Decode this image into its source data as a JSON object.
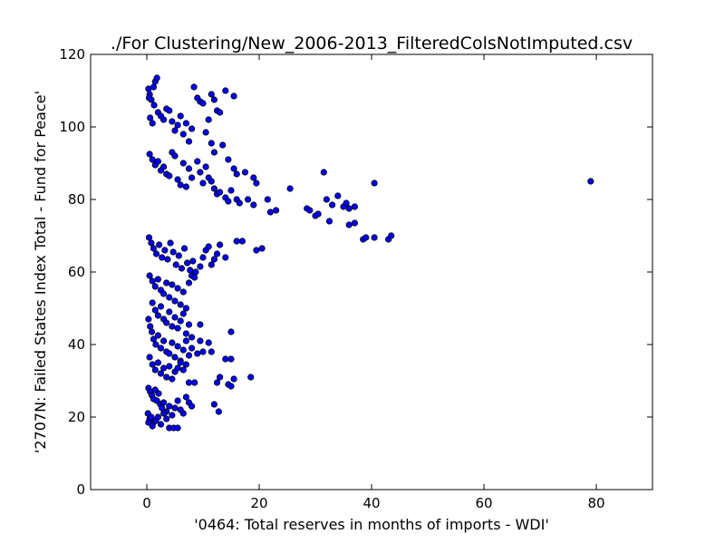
{
  "chart_data": {
    "type": "scatter",
    "title": "./For Clustering/New_2006-2013_FilteredColsNotImputed.csv",
    "xlabel": "'0464: Total reserves in months of imports - WDI'",
    "ylabel": "'2707N: Failed States Index Total - Fund for Peace'",
    "xlim": [
      -10,
      90
    ],
    "ylim": [
      0,
      120
    ],
    "xticks": [
      "0",
      "20",
      "40",
      "60",
      "80"
    ],
    "yticks": [
      "0",
      "20",
      "40",
      "60",
      "80",
      "100",
      "120"
    ],
    "grid": false,
    "marker_color": "#0000ff",
    "marker_edge_color": "#000000",
    "series": [
      {
        "points": [
          [
            0.3,
            110.5
          ],
          [
            0.5,
            109.0
          ],
          [
            0.8,
            107.5
          ],
          [
            1.2,
            111.0
          ],
          [
            1.5,
            112.5
          ],
          [
            1.8,
            113.5
          ],
          [
            0.6,
            102.5
          ],
          [
            1.0,
            101.0
          ],
          [
            0.4,
            108.0
          ],
          [
            1.3,
            106.0
          ],
          [
            2.0,
            104.0
          ],
          [
            2.5,
            103.0
          ],
          [
            3.0,
            102.0
          ],
          [
            3.5,
            105.0
          ],
          [
            4.0,
            104.5
          ],
          [
            4.5,
            101.5
          ],
          [
            5.0,
            99.0
          ],
          [
            5.5,
            100.5
          ],
          [
            6.0,
            103.0
          ],
          [
            6.5,
            98.0
          ],
          [
            7.0,
            101.0
          ],
          [
            7.5,
            96.0
          ],
          [
            8.0,
            99.5
          ],
          [
            8.4,
            111.0
          ],
          [
            9.0,
            108.0
          ],
          [
            9.5,
            107.0
          ],
          [
            10.0,
            106.5
          ],
          [
            11.0,
            102.0
          ],
          [
            11.5,
            109.0
          ],
          [
            12.0,
            107.5
          ],
          [
            12.5,
            104.5
          ],
          [
            13.0,
            104.0
          ],
          [
            14.0,
            110.0
          ],
          [
            15.5,
            108.5
          ],
          [
            10.5,
            98.5
          ],
          [
            11.5,
            95.5
          ],
          [
            12.0,
            93.0
          ],
          [
            13.5,
            95.0
          ],
          [
            14.5,
            91.0
          ],
          [
            15.5,
            88.5
          ],
          [
            16.0,
            87.0
          ],
          [
            17.5,
            87.5
          ],
          [
            19.0,
            86.0
          ],
          [
            19.5,
            84.5
          ],
          [
            0.5,
            92.5
          ],
          [
            1.0,
            91.0
          ],
          [
            1.5,
            89.5
          ],
          [
            2.0,
            90.5
          ],
          [
            2.5,
            88.0
          ],
          [
            3.0,
            89.0
          ],
          [
            3.5,
            87.0
          ],
          [
            4.0,
            86.5
          ],
          [
            4.5,
            93.0
          ],
          [
            5.0,
            92.0
          ],
          [
            5.5,
            85.5
          ],
          [
            6.0,
            84.0
          ],
          [
            6.5,
            90.0
          ],
          [
            7.0,
            83.5
          ],
          [
            7.5,
            88.5
          ],
          [
            8.0,
            86.0
          ],
          [
            9.0,
            90.5
          ],
          [
            9.5,
            87.5
          ],
          [
            10.0,
            84.5
          ],
          [
            10.5,
            89.0
          ],
          [
            11.0,
            86.0
          ],
          [
            11.5,
            85.0
          ],
          [
            12.0,
            83.0
          ],
          [
            12.5,
            81.5
          ],
          [
            13.0,
            82.0
          ],
          [
            14.0,
            80.5
          ],
          [
            14.5,
            79.5
          ],
          [
            15.0,
            82.5
          ],
          [
            16.0,
            80.0
          ],
          [
            16.5,
            79.0
          ],
          [
            18.0,
            80.0
          ],
          [
            19.0,
            78.5
          ],
          [
            21.5,
            80.0
          ],
          [
            22.0,
            76.5
          ],
          [
            23.0,
            77.0
          ],
          [
            25.5,
            83.0
          ],
          [
            28.5,
            77.5
          ],
          [
            29.0,
            77.0
          ],
          [
            30.0,
            75.5
          ],
          [
            30.5,
            76.0
          ],
          [
            31.5,
            87.5
          ],
          [
            32.0,
            80.0
          ],
          [
            32.5,
            74.0
          ],
          [
            33.0,
            78.5
          ],
          [
            34.0,
            81.0
          ],
          [
            35.0,
            78.0
          ],
          [
            35.5,
            79.0
          ],
          [
            36.0,
            77.5
          ],
          [
            37.0,
            78.0
          ],
          [
            36.0,
            73.0
          ],
          [
            37.0,
            73.5
          ],
          [
            38.5,
            69.0
          ],
          [
            39.0,
            69.5
          ],
          [
            40.5,
            69.5
          ],
          [
            40.5,
            84.5
          ],
          [
            43.0,
            69.0
          ],
          [
            43.5,
            70.0
          ],
          [
            79.0,
            85.0
          ],
          [
            19.5,
            66.0
          ],
          [
            20.5,
            66.5
          ],
          [
            17.0,
            68.5
          ],
          [
            16.0,
            68.5
          ],
          [
            0.4,
            69.5
          ],
          [
            0.8,
            68.0
          ],
          [
            1.2,
            66.5
          ],
          [
            1.7,
            65.0
          ],
          [
            2.2,
            67.5
          ],
          [
            2.7,
            64.0
          ],
          [
            3.2,
            66.0
          ],
          [
            3.7,
            63.5
          ],
          [
            4.2,
            68.0
          ],
          [
            4.7,
            65.5
          ],
          [
            5.2,
            62.0
          ],
          [
            5.7,
            64.5
          ],
          [
            6.2,
            61.0
          ],
          [
            6.7,
            66.5
          ],
          [
            7.2,
            62.5
          ],
          [
            7.7,
            60.5
          ],
          [
            8.2,
            63.0
          ],
          [
            8.7,
            60.0
          ],
          [
            9.5,
            61.5
          ],
          [
            10.0,
            64.0
          ],
          [
            10.5,
            66.0
          ],
          [
            11.0,
            67.0
          ],
          [
            11.5,
            62.0
          ],
          [
            12.0,
            63.5
          ],
          [
            12.5,
            65.0
          ],
          [
            13.0,
            67.5
          ],
          [
            14.0,
            64.0
          ],
          [
            0.5,
            59.0
          ],
          [
            1.0,
            57.5
          ],
          [
            1.5,
            56.0
          ],
          [
            2.0,
            58.0
          ],
          [
            2.5,
            55.0
          ],
          [
            3.0,
            54.0
          ],
          [
            3.5,
            57.0
          ],
          [
            4.0,
            53.0
          ],
          [
            4.5,
            56.5
          ],
          [
            5.0,
            52.0
          ],
          [
            5.5,
            55.5
          ],
          [
            6.0,
            51.0
          ],
          [
            6.5,
            54.5
          ],
          [
            7.0,
            50.0
          ],
          [
            7.5,
            57.0
          ],
          [
            8.0,
            59.0
          ],
          [
            8.5,
            58.5
          ],
          [
            1.0,
            51.5
          ],
          [
            1.5,
            49.5
          ],
          [
            2.0,
            48.0
          ],
          [
            2.5,
            50.5
          ],
          [
            3.0,
            47.0
          ],
          [
            3.5,
            46.0
          ],
          [
            4.0,
            49.0
          ],
          [
            4.5,
            45.0
          ],
          [
            5.0,
            47.5
          ],
          [
            5.5,
            44.5
          ],
          [
            6.0,
            46.5
          ],
          [
            6.5,
            48.5
          ],
          [
            7.0,
            43.0
          ],
          [
            7.5,
            45.5
          ],
          [
            8.0,
            42.0
          ],
          [
            9.5,
            45.5
          ],
          [
            0.3,
            47.0
          ],
          [
            0.6,
            45.0
          ],
          [
            0.9,
            43.5
          ],
          [
            1.2,
            41.5
          ],
          [
            1.6,
            40.0
          ],
          [
            2.0,
            42.5
          ],
          [
            2.5,
            39.0
          ],
          [
            3.0,
            41.0
          ],
          [
            3.5,
            38.0
          ],
          [
            4.0,
            37.5
          ],
          [
            4.5,
            40.5
          ],
          [
            5.0,
            36.5
          ],
          [
            5.5,
            39.5
          ],
          [
            6.0,
            35.5
          ],
          [
            6.5,
            38.5
          ],
          [
            7.0,
            41.0
          ],
          [
            7.5,
            37.0
          ],
          [
            8.0,
            39.0
          ],
          [
            9.0,
            37.5
          ],
          [
            9.5,
            41.0
          ],
          [
            10.0,
            38.0
          ],
          [
            11.0,
            40.5
          ],
          [
            11.5,
            38.0
          ],
          [
            15.0,
            43.5
          ],
          [
            14.0,
            36.0
          ],
          [
            15.0,
            36.0
          ],
          [
            0.5,
            36.5
          ],
          [
            1.0,
            34.5
          ],
          [
            1.5,
            33.0
          ],
          [
            2.0,
            35.0
          ],
          [
            2.5,
            32.0
          ],
          [
            3.0,
            33.5
          ],
          [
            3.5,
            31.0
          ],
          [
            4.0,
            34.0
          ],
          [
            4.5,
            30.5
          ],
          [
            5.0,
            32.5
          ],
          [
            5.5,
            33.5
          ],
          [
            6.0,
            35.0
          ],
          [
            6.5,
            33.0
          ],
          [
            7.0,
            34.5
          ],
          [
            7.5,
            29.5
          ],
          [
            8.5,
            29.5
          ],
          [
            13.0,
            31.0
          ],
          [
            12.5,
            29.5
          ],
          [
            14.5,
            29.0
          ],
          [
            15.0,
            28.5
          ],
          [
            15.5,
            30.5
          ],
          [
            18.5,
            31.0
          ],
          [
            0.3,
            28.0
          ],
          [
            0.6,
            27.0
          ],
          [
            0.9,
            26.0
          ],
          [
            1.2,
            25.0
          ],
          [
            1.5,
            27.5
          ],
          [
            1.8,
            24.5
          ],
          [
            2.1,
            26.5
          ],
          [
            2.4,
            23.5
          ],
          [
            2.7,
            22.5
          ],
          [
            3.0,
            24.0
          ],
          [
            3.5,
            21.5
          ],
          [
            4.0,
            23.0
          ],
          [
            4.5,
            20.5
          ],
          [
            5.0,
            22.5
          ],
          [
            5.5,
            24.5
          ],
          [
            6.0,
            22.0
          ],
          [
            6.5,
            21.0
          ],
          [
            7.0,
            25.5
          ],
          [
            7.5,
            24.0
          ],
          [
            8.0,
            23.0
          ],
          [
            12.0,
            23.5
          ],
          [
            12.8,
            21.5
          ],
          [
            0.2,
            21.0
          ],
          [
            0.5,
            19.5
          ],
          [
            0.8,
            20.0
          ],
          [
            1.2,
            18.5
          ],
          [
            1.6,
            19.0
          ],
          [
            2.0,
            20.0
          ],
          [
            2.5,
            18.0
          ],
          [
            3.0,
            21.0
          ],
          [
            3.5,
            19.5
          ],
          [
            4.0,
            17.0
          ],
          [
            4.8,
            17.0
          ],
          [
            5.5,
            17.0
          ],
          [
            0.3,
            18.5
          ],
          [
            1.0,
            17.5
          ]
        ]
      }
    ]
  }
}
